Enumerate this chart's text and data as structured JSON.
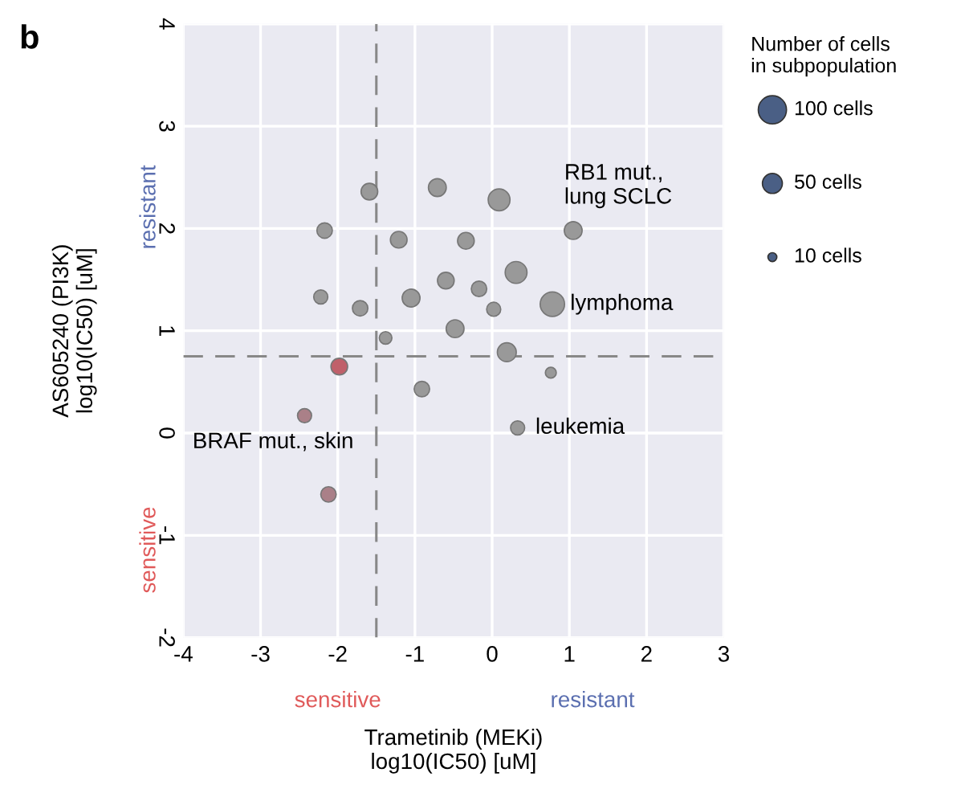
{
  "chart_data": {
    "type": "bubble",
    "xlabel": "Trametinib (MEKi)\nlog10(IC50) [uM]",
    "ylabel": "AS605240 (PI3K)\nlog10(IC50) [uM]",
    "legend_title": "Number of cells\nin subpopulation",
    "size_legend": [
      {
        "value": 100,
        "label": "100 cells"
      },
      {
        "value": 50,
        "label": "50 cells"
      },
      {
        "value": 10,
        "label": "10 cells"
      }
    ],
    "x": [
      -1.59,
      -2.17,
      -2.22,
      -1.71,
      -1.98,
      -1.38,
      -1.21,
      -0.71,
      -1.05,
      -0.6,
      -0.34,
      -0.17,
      -0.48,
      0.02,
      0.09,
      0.31,
      0.19,
      0.78,
      0.76,
      -0.91,
      1.05,
      -2.43,
      -2.12,
      0.33
    ],
    "values": [
      2.36,
      1.98,
      1.33,
      1.22,
      0.65,
      0.93,
      1.89,
      2.4,
      1.32,
      1.49,
      1.88,
      1.41,
      1.02,
      1.21,
      2.28,
      1.57,
      0.79,
      1.26,
      0.59,
      0.43,
      1.98,
      0.17,
      -0.6,
      0.05
    ],
    "sizes": [
      35,
      30,
      25,
      30,
      35,
      20,
      35,
      40,
      40,
      35,
      35,
      30,
      40,
      25,
      60,
      60,
      45,
      75,
      15,
      30,
      40,
      25,
      30,
      25
    ],
    "colors": [
      "#999999",
      "#999999",
      "#999999",
      "#999999",
      "#c0606a",
      "#999999",
      "#999999",
      "#999999",
      "#999999",
      "#999999",
      "#999999",
      "#999999",
      "#999999",
      "#999999",
      "#999999",
      "#999999",
      "#999999",
      "#999999",
      "#999999",
      "#999999",
      "#999999",
      "#aa8088",
      "#aa8088",
      "#999999"
    ],
    "xlim": [
      -4,
      3
    ],
    "ylim": [
      -2,
      4
    ],
    "xticks": [
      -4,
      -3,
      -2,
      -1,
      0,
      1,
      2,
      3
    ],
    "yticks": [
      -2,
      -1,
      0,
      1,
      2,
      3,
      4
    ],
    "grid": true,
    "ref_lines": [
      {
        "axis": "x",
        "value": -1.5,
        "line_style": "dashed",
        "color": "#888888"
      },
      {
        "axis": "y",
        "value": 0.75,
        "line_style": "dashed",
        "color": "#888888"
      }
    ],
    "annotations": [
      "b",
      "resistant",
      "sensitive",
      "sensitive",
      "resistant",
      {
        "text": "RB1 mut.,\nlung SCLC",
        "x": 1.05,
        "y": 1.98
      },
      {
        "text": "lymphoma",
        "x": 0.78,
        "y": 1.26
      },
      {
        "text": "leukemia",
        "x": 0.33,
        "y": 0.05
      },
      {
        "text": "BRAF mut., skin",
        "x": -2.43,
        "y": 0.17
      }
    ]
  }
}
